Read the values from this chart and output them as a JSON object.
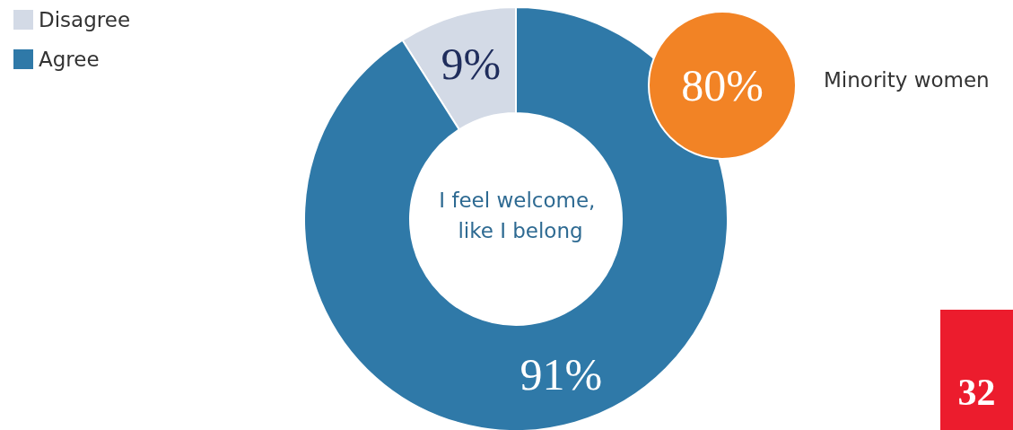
{
  "chart_data": {
    "type": "donut",
    "title": "I feel welcome, like I belong",
    "categories": [
      "Disagree",
      "Agree"
    ],
    "values": [
      9,
      91
    ],
    "colors": [
      "#d3dae6",
      "#2f79a8"
    ],
    "value_labels": [
      "9%",
      "91%"
    ],
    "legend": "top left",
    "annotations": [
      "80%",
      "Minority women",
      "32"
    ]
  }
}
